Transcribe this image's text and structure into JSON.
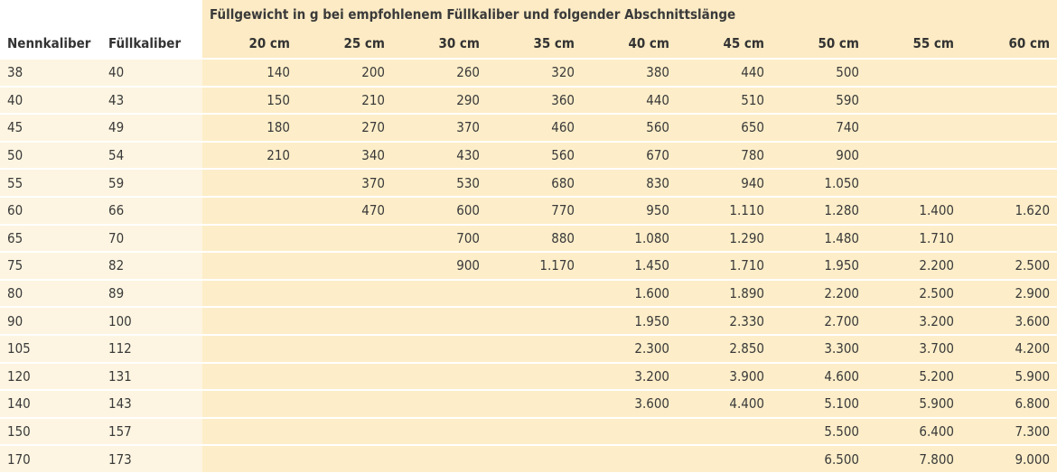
{
  "table": {
    "super_header": "Füllgewicht in g bei empfohlenem Füllkaliber und folgender Abschnittslänge",
    "col_nennkaliber": "Nennkaliber",
    "col_fuellkaliber": "Füllkaliber",
    "lengths": [
      "20 cm",
      "25 cm",
      "30 cm",
      "35 cm",
      "40 cm",
      "45 cm",
      "50 cm",
      "55 cm",
      "60 cm"
    ],
    "rows": [
      {
        "nenn": "38",
        "fuell": "40",
        "values": [
          "140",
          "200",
          "260",
          "320",
          "380",
          "440",
          "500",
          "",
          ""
        ]
      },
      {
        "nenn": "40",
        "fuell": "43",
        "values": [
          "150",
          "210",
          "290",
          "360",
          "440",
          "510",
          "590",
          "",
          ""
        ]
      },
      {
        "nenn": "45",
        "fuell": "49",
        "values": [
          "180",
          "270",
          "370",
          "460",
          "560",
          "650",
          "740",
          "",
          ""
        ]
      },
      {
        "nenn": "50",
        "fuell": "54",
        "values": [
          "210",
          "340",
          "430",
          "560",
          "670",
          "780",
          "900",
          "",
          ""
        ]
      },
      {
        "nenn": "55",
        "fuell": "59",
        "values": [
          "",
          "370",
          "530",
          "680",
          "830",
          "940",
          "1.050",
          "",
          ""
        ]
      },
      {
        "nenn": "60",
        "fuell": "66",
        "values": [
          "",
          "470",
          "600",
          "770",
          "950",
          "1.110",
          "1.280",
          "1.400",
          "1.620"
        ]
      },
      {
        "nenn": "65",
        "fuell": "70",
        "values": [
          "",
          "",
          "700",
          "880",
          "1.080",
          "1.290",
          "1.480",
          "1.710",
          ""
        ]
      },
      {
        "nenn": "75",
        "fuell": "82",
        "values": [
          "",
          "",
          "900",
          "1.170",
          "1.450",
          "1.710",
          "1.950",
          "2.200",
          "2.500"
        ]
      },
      {
        "nenn": "80",
        "fuell": "89",
        "values": [
          "",
          "",
          "",
          "",
          "1.600",
          "1.890",
          "2.200",
          "2.500",
          "2.900"
        ]
      },
      {
        "nenn": "90",
        "fuell": "100",
        "values": [
          "",
          "",
          "",
          "",
          "1.950",
          "2.330",
          "2.700",
          "3.200",
          "3.600"
        ]
      },
      {
        "nenn": "105",
        "fuell": "112",
        "values": [
          "",
          "",
          "",
          "",
          "2.300",
          "2.850",
          "3.300",
          "3.700",
          "4.200"
        ]
      },
      {
        "nenn": "120",
        "fuell": "131",
        "values": [
          "",
          "",
          "",
          "",
          "3.200",
          "3.900",
          "4.600",
          "5.200",
          "5.900"
        ]
      },
      {
        "nenn": "140",
        "fuell": "143",
        "values": [
          "",
          "",
          "",
          "",
          "3.600",
          "4.400",
          "5.100",
          "5.900",
          "6.800"
        ]
      },
      {
        "nenn": "150",
        "fuell": "157",
        "values": [
          "",
          "",
          "",
          "",
          "",
          "",
          "5.500",
          "6.400",
          "7.300"
        ]
      },
      {
        "nenn": "170",
        "fuell": "173",
        "values": [
          "",
          "",
          "",
          "",
          "",
          "",
          "6.500",
          "7.800",
          "9.000"
        ]
      }
    ]
  }
}
